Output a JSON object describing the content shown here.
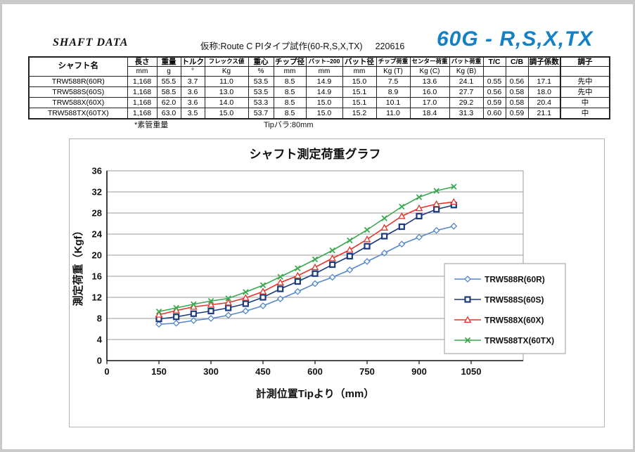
{
  "header": {
    "doc_title": "SHAFT DATA",
    "subtitle": "仮称:Route C PIタイプ試作(60-R,S,X,TX)",
    "date_code": "220616",
    "model_title": "60G - R,S,X,TX",
    "accent_blue": "#1581c5"
  },
  "table": {
    "name_header": "シャフト名",
    "columns": [
      {
        "label": "長さ",
        "unit": "mm"
      },
      {
        "label": "重量",
        "unit": "g"
      },
      {
        "label": "トルク",
        "unit": "°"
      },
      {
        "label": "フレックス値",
        "unit": "Kg",
        "narrow": true
      },
      {
        "label": "重心",
        "unit": "%"
      },
      {
        "label": "チップ径",
        "unit": "mm"
      },
      {
        "label": "バット~200",
        "unit": "mm",
        "narrow": true
      },
      {
        "label": "バット径",
        "unit": "mm"
      },
      {
        "label": "チップ荷重",
        "unit": "Kg (T)",
        "narrow": true
      },
      {
        "label": "センター荷重",
        "unit": "Kg (C)",
        "narrow": true
      },
      {
        "label": "バット荷重",
        "unit": "Kg (B)",
        "narrow": true
      },
      {
        "label": "T/C",
        "unit": ""
      },
      {
        "label": "C/B",
        "unit": ""
      },
      {
        "label": "調子係数",
        "unit": ""
      },
      {
        "label": "調子",
        "unit": "",
        "thick_left": true
      }
    ],
    "rows": [
      {
        "name": "TRW588R(60R)",
        "values": [
          "1,168",
          "55.5",
          "3.7",
          "11.0",
          "53.5",
          "8.5",
          "14.9",
          "15.0",
          "7.5",
          "13.6",
          "24.1",
          "0.55",
          "0.56",
          "17.1",
          "先中"
        ]
      },
      {
        "name": "TRW588S(60S)",
        "values": [
          "1,168",
          "58.5",
          "3.6",
          "13.0",
          "53.5",
          "8.5",
          "14.9",
          "15.1",
          "8.9",
          "16.0",
          "27.7",
          "0.56",
          "0.58",
          "18.0",
          "先中"
        ]
      },
      {
        "name": "TRW588X(60X)",
        "values": [
          "1,168",
          "62.0",
          "3.6",
          "14.0",
          "53.3",
          "8.5",
          "15.0",
          "15.1",
          "10.1",
          "17.0",
          "29.2",
          "0.59",
          "0.58",
          "20.4",
          "中"
        ]
      },
      {
        "name": "TRW588TX(60TX)",
        "values": [
          "1,168",
          "63.0",
          "3.5",
          "15.0",
          "53.7",
          "8.5",
          "15.0",
          "15.2",
          "11.0",
          "18.4",
          "31.3",
          "0.60",
          "0.59",
          "21.1",
          "中"
        ]
      }
    ],
    "footnote_weight": "*素管重量",
    "footnote_tip": "Tipバラ:80mm"
  },
  "chart_data": {
    "type": "line",
    "title": "シャフト測定荷重グラフ",
    "xlabel": "計測位置Tipより（mm）",
    "ylabel": "測定荷重（Kgf）",
    "xlim": [
      0,
      1200
    ],
    "ylim": [
      0,
      36
    ],
    "x_ticks": [
      0,
      150,
      300,
      450,
      600,
      750,
      900,
      1050
    ],
    "y_ticks": [
      0,
      4,
      8,
      12,
      16,
      20,
      24,
      28,
      32,
      36
    ],
    "grid": "horizontal",
    "legend_position": "right-overlay",
    "x": [
      150,
      200,
      250,
      300,
      350,
      400,
      450,
      500,
      550,
      600,
      650,
      700,
      750,
      800,
      850,
      900,
      950,
      1000
    ],
    "series": [
      {
        "name": "TRW588R(60R)",
        "color": "#5588cc",
        "marker": "diamond",
        "values": [
          6.9,
          7.1,
          7.6,
          8.0,
          8.6,
          9.4,
          10.4,
          11.7,
          13.1,
          14.6,
          15.8,
          17.2,
          18.8,
          20.4,
          22.1,
          23.4,
          24.7,
          25.5
        ]
      },
      {
        "name": "TRW588S(60S)",
        "color": "#1b3a80",
        "marker": "square",
        "values": [
          7.9,
          8.3,
          8.9,
          9.4,
          10.0,
          10.8,
          12.0,
          13.6,
          15.0,
          16.5,
          18.2,
          19.8,
          21.7,
          23.6,
          25.4,
          27.4,
          28.7,
          29.5
        ]
      },
      {
        "name": "TRW588X(60X)",
        "color": "#e63329",
        "marker": "triangle",
        "values": [
          8.7,
          9.5,
          10.2,
          10.6,
          11.0,
          11.9,
          13.1,
          14.8,
          16.1,
          17.7,
          19.4,
          21.0,
          23.0,
          25.2,
          27.4,
          28.9,
          29.7,
          30.1
        ]
      },
      {
        "name": "TRW588TX(60TX)",
        "color": "#3aa84e",
        "marker": "x",
        "values": [
          9.3,
          10.0,
          10.7,
          11.3,
          11.8,
          13.0,
          14.3,
          15.9,
          17.5,
          19.2,
          20.9,
          22.8,
          24.8,
          27.0,
          29.2,
          31.0,
          32.2,
          33.0
        ]
      }
    ]
  }
}
